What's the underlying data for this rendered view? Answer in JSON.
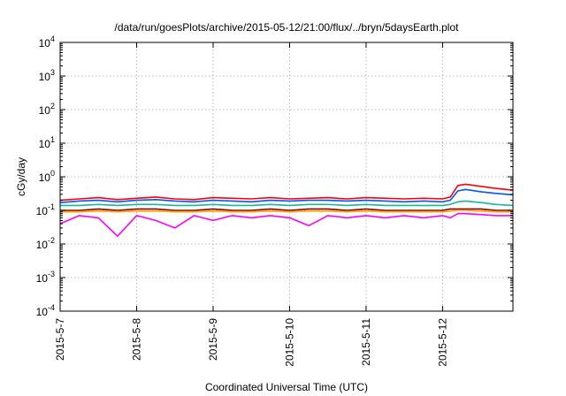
{
  "chart_data": {
    "type": "line",
    "title": "/data/run/goesPlots/archive/2015-05-12/21:00/flux/../bryn/5daysEarth.plot",
    "xlabel": "Coordinated Universal Time (UTC)",
    "ylabel": "cGy/day",
    "yscale": "log",
    "ylim": [
      0.0001,
      10000
    ],
    "xlim": [
      0,
      5.92
    ],
    "grid": true,
    "legend": "none",
    "x_tick_values": [
      0,
      1,
      2,
      3,
      4,
      5
    ],
    "x_tick_labels": [
      "2015-5-7",
      "2015-5-8",
      "2015-5-9",
      "2015-5-10",
      "2015-5-11",
      "2015-5-12"
    ],
    "y_ticks": [
      {
        "value": 0.0001,
        "base": "10",
        "exp": "-4"
      },
      {
        "value": 0.001,
        "base": "10",
        "exp": "-3"
      },
      {
        "value": 0.01,
        "base": "10",
        "exp": "-2"
      },
      {
        "value": 0.1,
        "base": "10",
        "exp": "-1"
      },
      {
        "value": 1,
        "base": "10",
        "exp": "0"
      },
      {
        "value": 10,
        "base": "10",
        "exp": "1"
      },
      {
        "value": 100,
        "base": "10",
        "exp": "2"
      },
      {
        "value": 1000,
        "base": "10",
        "exp": "3"
      },
      {
        "value": 10000,
        "base": "10",
        "exp": "4"
      }
    ],
    "x": [
      0,
      0.25,
      0.5,
      0.75,
      1.0,
      1.25,
      1.5,
      1.75,
      2.0,
      2.25,
      2.5,
      2.75,
      3.0,
      3.25,
      3.5,
      3.75,
      4.0,
      4.25,
      4.5,
      4.75,
      5.0,
      5.1,
      5.2,
      5.3,
      5.5,
      5.7,
      5.92
    ],
    "series": [
      {
        "color": "#ff0000",
        "values": [
          0.2,
          0.22,
          0.24,
          0.21,
          0.23,
          0.25,
          0.22,
          0.21,
          0.24,
          0.23,
          0.22,
          0.24,
          0.22,
          0.23,
          0.24,
          0.22,
          0.24,
          0.23,
          0.22,
          0.23,
          0.22,
          0.25,
          0.55,
          0.6,
          0.52,
          0.45,
          0.4
        ]
      },
      {
        "color": "#0055ff",
        "values": [
          0.17,
          0.19,
          0.2,
          0.18,
          0.2,
          0.21,
          0.19,
          0.18,
          0.2,
          0.19,
          0.18,
          0.2,
          0.19,
          0.2,
          0.2,
          0.19,
          0.2,
          0.19,
          0.18,
          0.19,
          0.18,
          0.2,
          0.38,
          0.42,
          0.36,
          0.32,
          0.29
        ]
      },
      {
        "color": "#11bb99",
        "values": [
          0.14,
          0.14,
          0.15,
          0.14,
          0.15,
          0.15,
          0.14,
          0.14,
          0.15,
          0.14,
          0.14,
          0.15,
          0.14,
          0.15,
          0.15,
          0.14,
          0.15,
          0.14,
          0.14,
          0.14,
          0.14,
          0.15,
          0.18,
          0.19,
          0.17,
          0.15,
          0.14
        ]
      },
      {
        "color": "#8b0000",
        "values": [
          0.1,
          0.1,
          0.11,
          0.1,
          0.11,
          0.11,
          0.1,
          0.1,
          0.11,
          0.1,
          0.1,
          0.11,
          0.1,
          0.11,
          0.11,
          0.1,
          0.11,
          0.1,
          0.1,
          0.1,
          0.1,
          0.11,
          0.11,
          0.11,
          0.11,
          0.1,
          0.1
        ]
      },
      {
        "color": "#ffa500",
        "values": [
          0.09,
          0.09,
          0.095,
          0.09,
          0.095,
          0.095,
          0.09,
          0.09,
          0.095,
          0.09,
          0.09,
          0.095,
          0.09,
          0.095,
          0.095,
          0.09,
          0.095,
          0.09,
          0.09,
          0.09,
          0.09,
          0.095,
          0.1,
          0.1,
          0.095,
          0.09,
          0.09
        ]
      },
      {
        "color": "#ff00ff",
        "values": [
          0.04,
          0.07,
          0.06,
          0.017,
          0.07,
          0.05,
          0.03,
          0.07,
          0.05,
          0.07,
          0.06,
          0.07,
          0.06,
          0.035,
          0.07,
          0.06,
          0.07,
          0.06,
          0.07,
          0.06,
          0.07,
          0.06,
          0.08,
          0.08,
          0.075,
          0.07,
          0.07
        ]
      }
    ]
  }
}
